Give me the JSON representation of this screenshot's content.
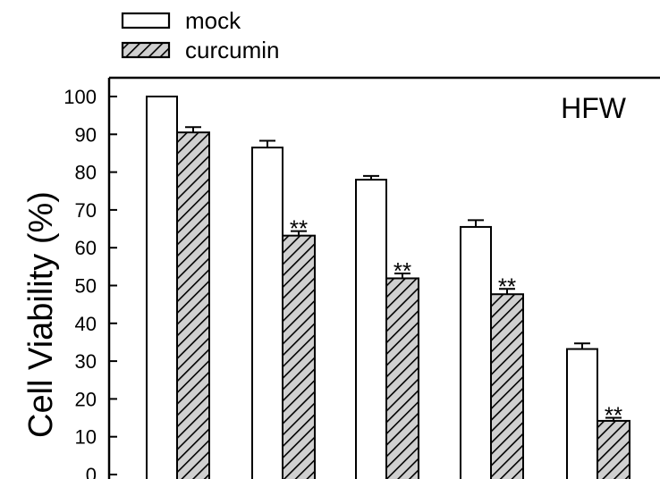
{
  "chart_data": {
    "type": "bar",
    "title": "",
    "panel_label": "HFW",
    "ylabel": "Cell Viability (%)",
    "xlabel": "",
    "ylim": [
      0,
      100
    ],
    "yticks": [
      0,
      10,
      20,
      30,
      40,
      50,
      60,
      70,
      80,
      90,
      100
    ],
    "ytick_labels": [
      "0",
      "10",
      "20",
      "30",
      "40",
      "50",
      "60",
      "70",
      "80",
      "90",
      "100"
    ],
    "grid": false,
    "legend_position": "top-left, outside plot",
    "categories": [
      "",
      "",
      "",
      "",
      ""
    ],
    "series": [
      {
        "name": "mock",
        "fill": "white",
        "values": [
          100,
          86.5,
          78,
          65.5,
          33.2
        ],
        "errors": [
          0,
          1.8,
          1.0,
          1.8,
          1.5
        ],
        "significance": [
          "",
          "",
          "",
          "",
          ""
        ]
      },
      {
        "name": "curcumin",
        "fill": "hatched",
        "values": [
          90.5,
          63.2,
          51.9,
          47.7,
          14.2
        ],
        "errors": [
          1.4,
          1.2,
          1.3,
          1.4,
          0.8
        ],
        "significance": [
          "",
          "**",
          "**",
          "**",
          "**"
        ]
      }
    ]
  }
}
